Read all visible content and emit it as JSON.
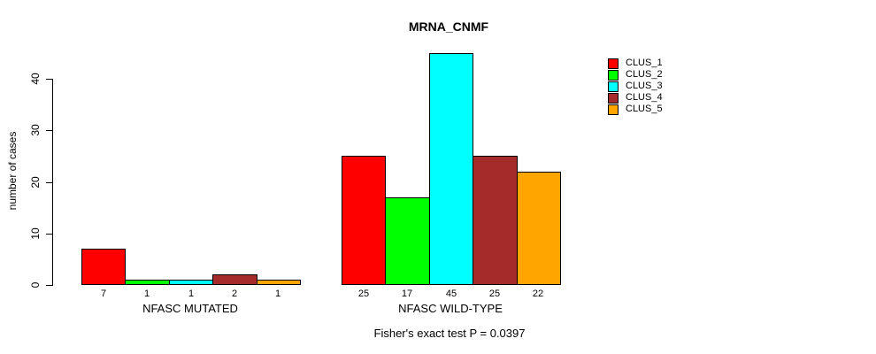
{
  "chart_data": {
    "type": "bar",
    "title": "MRNA_CNMF",
    "ylabel": "number of cases",
    "xlabel": "",
    "annotation": "Fisher's exact test P = 0.0397",
    "yticks": [
      0,
      10,
      20,
      30,
      40
    ],
    "ylim": [
      0,
      45
    ],
    "grid": false,
    "legend_position": "right-inside",
    "bar_value_labels_shown": true,
    "series_names": [
      "CLUS_1",
      "CLUS_2",
      "CLUS_3",
      "CLUS_4",
      "CLUS_5"
    ],
    "colors": [
      "#ff0000",
      "#00ff00",
      "#00ffff",
      "#a52a2a",
      "#ffa500"
    ],
    "groups": [
      {
        "label": "NFASC MUTATED",
        "values": [
          7,
          1,
          1,
          2,
          1
        ]
      },
      {
        "label": "NFASC WILD-TYPE",
        "values": [
          25,
          17,
          45,
          25,
          22
        ]
      }
    ]
  }
}
